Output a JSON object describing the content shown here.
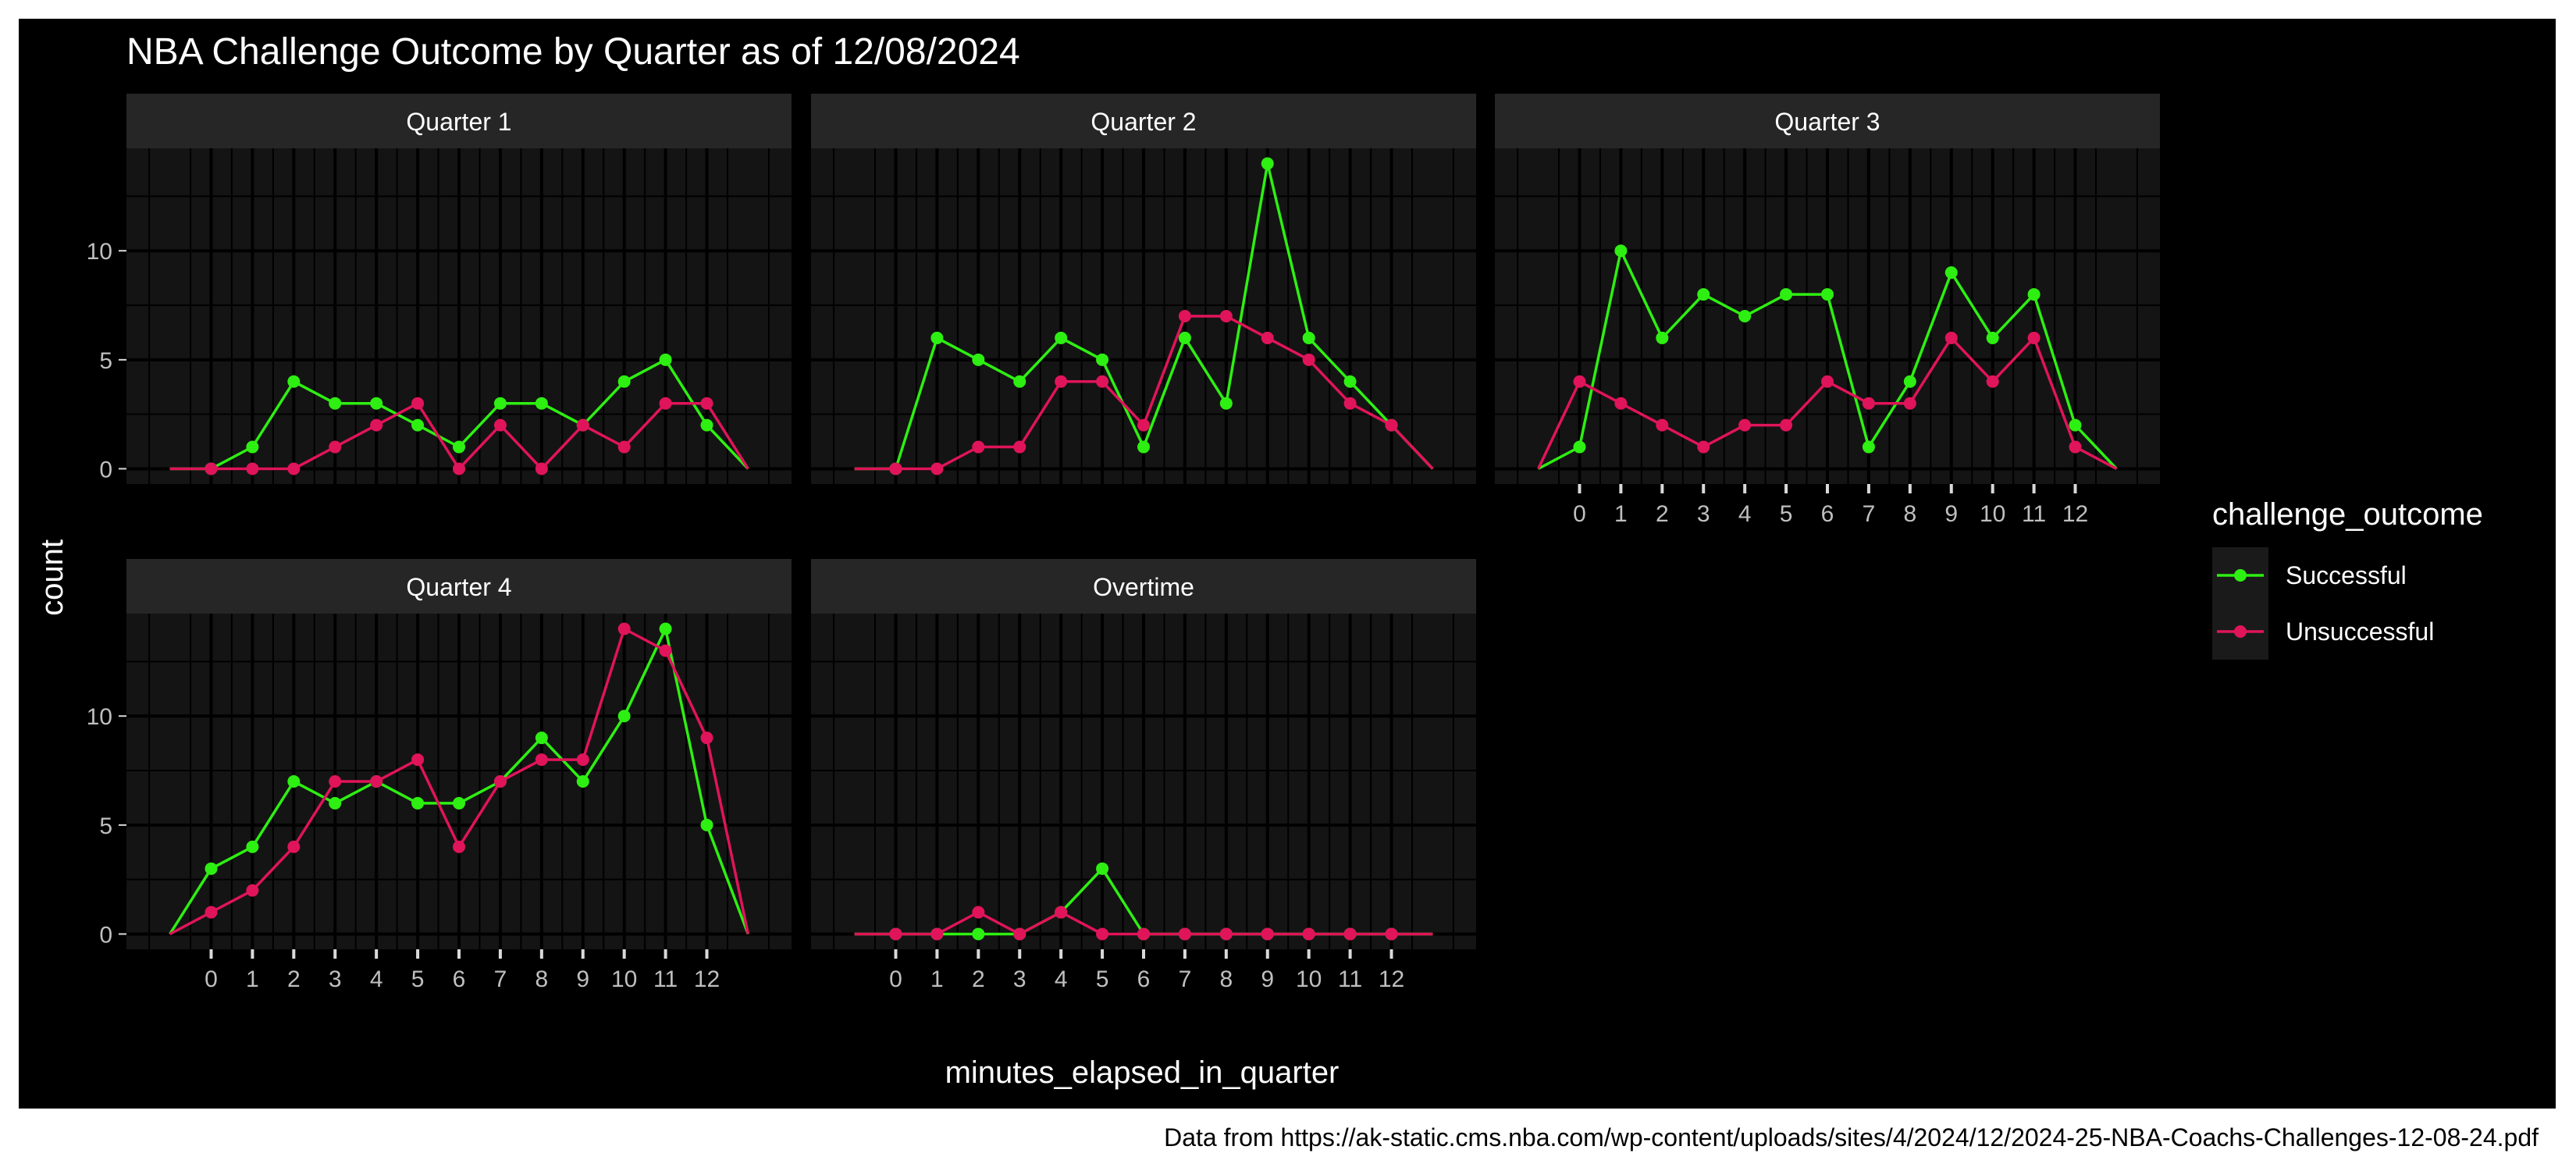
{
  "chart_data": {
    "type": "line",
    "title": "NBA Challenge Outcome by Quarter as of 12/08/2024",
    "xlabel": "minutes_elapsed_in_quarter",
    "ylabel": "count",
    "caption": "Data from https://ak-static.cms.nba.com/wp-content/uploads/sites/4/2024/12/2024-25-NBA-Coachs-Challenges-12-08-24.pdf",
    "xlim": [
      -1,
      13
    ],
    "ylim": [
      0,
      14
    ],
    "x_ticks": [
      0,
      1,
      2,
      3,
      4,
      5,
      6,
      7,
      8,
      9,
      10,
      11,
      12
    ],
    "y_ticks": [
      0,
      5,
      10
    ],
    "grid": true,
    "legend": {
      "title": "challenge_outcome",
      "position": "right",
      "entries": [
        "Successful",
        "Unsuccessful"
      ]
    },
    "colors": {
      "Successful": "#2EEF12",
      "Unsuccessful": "#E0145A"
    },
    "panels": [
      {
        "label": "Quarter 1",
        "series": [
          {
            "name": "Successful",
            "x": [
              -1,
              0,
              1,
              2,
              3,
              4,
              5,
              6,
              7,
              8,
              9,
              10,
              11,
              12,
              13
            ],
            "y": [
              0,
              0,
              1,
              4,
              3,
              3,
              2,
              1,
              3,
              3,
              2,
              4,
              5,
              2,
              0
            ],
            "points": [
              0,
              1,
              2,
              3,
              4,
              5,
              6,
              7,
              8,
              9,
              10,
              11,
              12
            ]
          },
          {
            "name": "Unsuccessful",
            "x": [
              -1,
              0,
              1,
              2,
              3,
              4,
              5,
              6,
              7,
              8,
              9,
              10,
              11,
              12,
              13
            ],
            "y": [
              0,
              0,
              0,
              0,
              1,
              2,
              3,
              0,
              2,
              0,
              2,
              1,
              3,
              3,
              0
            ],
            "points": [
              0,
              1,
              2,
              3,
              4,
              5,
              6,
              7,
              8,
              9,
              10,
              11,
              12
            ]
          }
        ]
      },
      {
        "label": "Quarter 2",
        "series": [
          {
            "name": "Successful",
            "x": [
              -1,
              0,
              1,
              2,
              3,
              4,
              5,
              6,
              7,
              8,
              9,
              10,
              11,
              12,
              13
            ],
            "y": [
              0,
              0,
              6,
              5,
              4,
              6,
              5,
              1,
              6,
              3,
              14,
              6,
              4,
              2,
              0
            ],
            "points": [
              0,
              1,
              2,
              3,
              4,
              5,
              6,
              7,
              8,
              9,
              10,
              11,
              12
            ]
          },
          {
            "name": "Unsuccessful",
            "x": [
              -1,
              0,
              1,
              2,
              3,
              4,
              5,
              6,
              7,
              8,
              9,
              10,
              11,
              12,
              13
            ],
            "y": [
              0,
              0,
              0,
              1,
              1,
              4,
              4,
              2,
              7,
              7,
              6,
              5,
              3,
              2,
              0
            ],
            "points": [
              0,
              1,
              2,
              3,
              4,
              5,
              6,
              7,
              8,
              9,
              10,
              11,
              12
            ]
          }
        ]
      },
      {
        "label": "Quarter 3",
        "series": [
          {
            "name": "Successful",
            "x": [
              -1,
              0,
              1,
              2,
              3,
              4,
              5,
              6,
              7,
              8,
              9,
              10,
              11,
              12,
              13
            ],
            "y": [
              0,
              1,
              10,
              6,
              8,
              7,
              8,
              8,
              1,
              4,
              9,
              6,
              8,
              2,
              0
            ],
            "points": [
              0,
              1,
              2,
              3,
              4,
              5,
              6,
              7,
              8,
              9,
              10,
              11,
              12
            ]
          },
          {
            "name": "Unsuccessful",
            "x": [
              -1,
              0,
              1,
              2,
              3,
              4,
              5,
              6,
              7,
              8,
              9,
              10,
              11,
              12,
              13
            ],
            "y": [
              0,
              4,
              3,
              2,
              1,
              2,
              2,
              4,
              3,
              3,
              6,
              4,
              6,
              1,
              0
            ],
            "points": [
              0,
              1,
              2,
              3,
              4,
              5,
              6,
              7,
              8,
              9,
              10,
              11,
              12
            ]
          }
        ]
      },
      {
        "label": "Quarter 4",
        "series": [
          {
            "name": "Successful",
            "x": [
              -1,
              0,
              1,
              2,
              3,
              4,
              5,
              6,
              7,
              8,
              9,
              10,
              11,
              12,
              13
            ],
            "y": [
              0,
              3,
              4,
              7,
              6,
              7,
              6,
              6,
              7,
              9,
              7,
              10,
              14,
              5,
              0
            ],
            "points": [
              0,
              1,
              2,
              3,
              4,
              5,
              6,
              7,
              8,
              9,
              10,
              11,
              12
            ]
          },
          {
            "name": "Unsuccessful",
            "x": [
              -1,
              0,
              1,
              2,
              3,
              4,
              5,
              6,
              7,
              8,
              9,
              10,
              11,
              12,
              13
            ],
            "y": [
              0,
              1,
              2,
              4,
              7,
              7,
              8,
              4,
              7,
              8,
              8,
              14,
              13,
              9,
              0
            ],
            "points": [
              0,
              1,
              2,
              3,
              4,
              5,
              6,
              7,
              8,
              9,
              10,
              11,
              12
            ]
          }
        ]
      },
      {
        "label": "Overtime",
        "series": [
          {
            "name": "Successful",
            "x": [
              -1,
              0,
              1,
              2,
              3,
              4,
              5,
              6,
              7,
              8,
              9,
              10,
              11,
              12,
              13
            ],
            "y": [
              0,
              0,
              0,
              0,
              0,
              1,
              3,
              0,
              0,
              0,
              0,
              0,
              0,
              0,
              0
            ],
            "points": [
              0,
              1,
              2,
              3,
              4,
              5,
              6,
              7,
              8,
              9,
              10,
              11,
              12
            ]
          },
          {
            "name": "Unsuccessful",
            "x": [
              -1,
              0,
              1,
              2,
              3,
              4,
              5,
              6,
              7,
              8,
              9,
              10,
              11,
              12,
              13
            ],
            "y": [
              0,
              0,
              0,
              1,
              0,
              1,
              0,
              0,
              0,
              0,
              0,
              0,
              0,
              0,
              0
            ],
            "points": [
              0,
              1,
              2,
              3,
              4,
              5,
              6,
              7,
              8,
              9,
              10,
              11,
              12
            ]
          }
        ]
      }
    ]
  }
}
